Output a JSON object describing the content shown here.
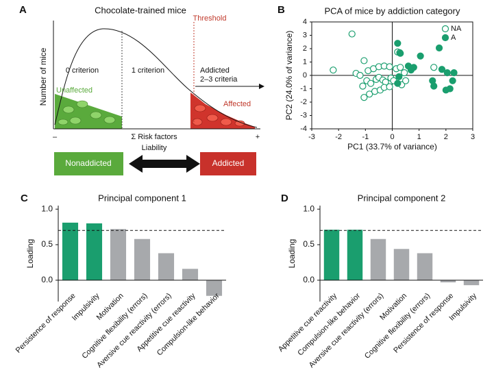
{
  "diagram": {
    "panel_label": "A",
    "title": "Chocolate-trained mice",
    "y_label": "Number of mice",
    "zone_0": "0 criterion",
    "zone_1": "1 criterion",
    "threshold": "Threshold",
    "addicted_zone": "Addicted",
    "addicted_criteria": "2–3 criteria",
    "unaffected": "Unaffected",
    "affected": "Affected",
    "axis_minus": "–",
    "axis_label": "Σ Risk factors",
    "axis_plus": "+",
    "liability": "Liability",
    "box_left": "Nonaddicted",
    "box_right": "Addicted"
  },
  "chart_data": [
    {
      "type": "scatter",
      "panel_label": "B",
      "title": "PCA of mice by addiction category",
      "x_label": "PC1 (33.7% of variance)",
      "y_label": "PC2 (24.0% of variance)",
      "xlim": [
        -3,
        3
      ],
      "ylim": [
        -4,
        4
      ],
      "xticks": [
        -3,
        -2,
        -1,
        0,
        1,
        2,
        3
      ],
      "yticks": [
        -4,
        -3,
        -2,
        -1,
        0,
        1,
        2,
        3,
        4
      ],
      "legend": "upper right",
      "series": [
        {
          "name": "NA",
          "color": "#1a9e6e",
          "marker": "open",
          "x": [
            -1.5,
            -2.2,
            -1.05,
            -1.35,
            -1.2,
            -0.9,
            -0.7,
            -0.5,
            -0.3,
            -0.1,
            0.2,
            0.28,
            0.15,
            0.3,
            -0.95,
            -0.8,
            -0.6,
            -0.5,
            -0.35,
            -0.25,
            -0.05,
            0.05,
            -1.05,
            -0.85,
            -0.65,
            -0.45,
            -0.3,
            -0.1,
            0.35,
            0.5,
            -1.1,
            1.55,
            0.45
          ],
          "y": [
            3.1,
            0.4,
            1.1,
            0.15,
            0,
            0.35,
            0.5,
            0.65,
            0.7,
            0.65,
            1.75,
            1.7,
            0.5,
            0.6,
            -0.4,
            -0.6,
            -0.3,
            -0.15,
            -0.35,
            -0.5,
            -0.2,
            -0.4,
            -1.65,
            -1.4,
            -1.2,
            -1.1,
            -0.9,
            -0.85,
            -0.7,
            -0.4,
            -0.8,
            0.6,
            0.2
          ]
        },
        {
          "name": "A",
          "color": "#1a9e6e",
          "marker": "filled",
          "x": [
            0.2,
            0.3,
            1.05,
            1.75,
            0.6,
            0.8,
            0.7,
            0.25,
            0.2,
            2.05,
            2.3,
            2.25,
            1.5,
            2.0,
            2.15,
            1.85,
            1.55
          ],
          "y": [
            2.4,
            1.65,
            1.45,
            2.05,
            0.7,
            0.6,
            0.4,
            -0.1,
            -0.6,
            0.2,
            0.2,
            -0.4,
            -0.4,
            -1.1,
            -1.0,
            0.45,
            -0.8
          ]
        }
      ]
    },
    {
      "type": "bar",
      "panel_label": "C",
      "title": "Principal component 1",
      "y_label": "Loading",
      "categories": [
        "Persistence of response",
        "Impulsivity",
        "Motivation",
        "Cognitive flexibility (errors)",
        "Aversive cue reactivity (errors)",
        "Appetitive cue reactivity",
        "Compulsion-like behavior"
      ],
      "values": [
        0.81,
        0.8,
        0.72,
        0.58,
        0.38,
        0.16,
        -0.22
      ],
      "colors": [
        "#1a9e6e",
        "#1a9e6e",
        "#a7a9ac",
        "#a7a9ac",
        "#a7a9ac",
        "#a7a9ac",
        "#a7a9ac"
      ],
      "ylim": [
        -0.3,
        1.05
      ],
      "yticks": [
        {
          "value": 0,
          "label": "0.0"
        },
        {
          "value": 0.5,
          "label": "0.5"
        },
        {
          "value": 1,
          "label": "1.0"
        }
      ],
      "threshold": 0.7
    },
    {
      "type": "bar",
      "panel_label": "D",
      "title": "Principal component 2",
      "y_label": "Loading",
      "categories": [
        "Appetitive cue reactivity",
        "Compulsion-like behavior",
        "Aversive cue reactivity (errors)",
        "Motivation",
        "Cognitive flexibility (errors)",
        "Persistence of response",
        "Impulsivity"
      ],
      "values": [
        0.71,
        0.71,
        0.58,
        0.44,
        0.38,
        -0.03,
        -0.07
      ],
      "colors": [
        "#1a9e6e",
        "#1a9e6e",
        "#a7a9ac",
        "#a7a9ac",
        "#a7a9ac",
        "#a7a9ac",
        "#a7a9ac"
      ],
      "ylim": [
        -0.3,
        1.05
      ],
      "yticks": [
        {
          "value": 0,
          "label": "0.0"
        },
        {
          "value": 0.5,
          "label": "0.5"
        },
        {
          "value": 1,
          "label": "1.0"
        }
      ],
      "threshold": 0.7
    }
  ]
}
